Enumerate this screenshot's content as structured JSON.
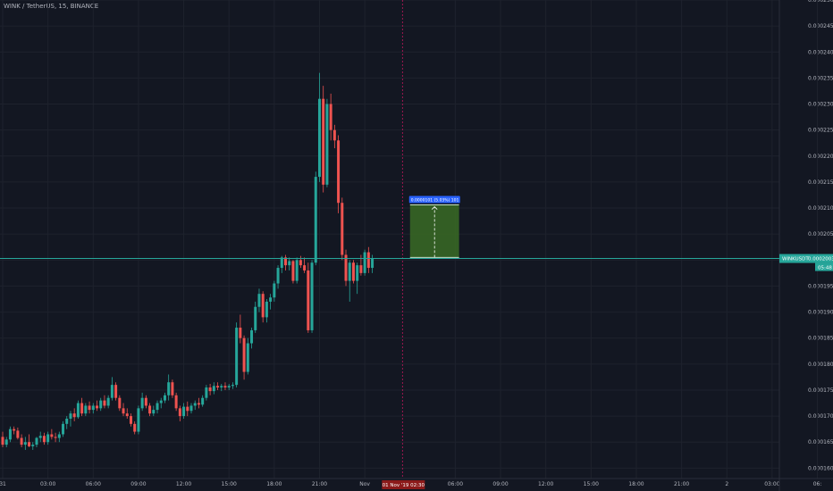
{
  "header": {
    "symbol_title": "WINK / TetherUS, 15, BINANCE"
  },
  "colors": {
    "background": "#131722",
    "grid": "#1e222d",
    "up": "#26a69a",
    "down": "#ef5350",
    "crosshair": "#c2185b",
    "measure_fill": "#3a6b25",
    "measure_label_bg": "#2962ff"
  },
  "chart_data": {
    "type": "candlestick",
    "ylim": [
      0.000158,
      0.00025
    ],
    "y_ticks": [
      "0.0002500",
      "0.0002450",
      "0.0002400",
      "0.0002350",
      "0.0002300",
      "0.0002250",
      "0.0002200",
      "0.0002150",
      "0.0002100",
      "0.0002050",
      "0.0002000",
      "0.0001950",
      "0.0001900",
      "0.0001850",
      "0.0001800",
      "0.0001750",
      "0.0001700",
      "0.0001650",
      "0.0001600"
    ],
    "x_ticks": [
      {
        "label": "31",
        "i": 0
      },
      {
        "label": "03:00",
        "i": 12
      },
      {
        "label": "06:00",
        "i": 24
      },
      {
        "label": "09:00",
        "i": 36
      },
      {
        "label": "12:00",
        "i": 48
      },
      {
        "label": "15:00",
        "i": 60
      },
      {
        "label": "18:00",
        "i": 72
      },
      {
        "label": "21:00",
        "i": 84
      },
      {
        "label": "Nov",
        "i": 96
      },
      {
        "label": "06:00",
        "i": 120
      },
      {
        "label": "09:00",
        "i": 132
      },
      {
        "label": "12:00",
        "i": 144
      },
      {
        "label": "15:00",
        "i": 156
      },
      {
        "label": "18:00",
        "i": 168
      },
      {
        "label": "21:00",
        "i": 180
      },
      {
        "label": "2",
        "i": 192
      },
      {
        "label": "03:00",
        "i": 204
      },
      {
        "label": "06:",
        "i": 216
      }
    ],
    "crosshair_label": "01 Nov '19   02:30",
    "crosshair_index": 106,
    "last_price": {
      "symbol": "WINKUSDT",
      "value": "0.0002003",
      "countdown": "05:48",
      "price": 0.0002003
    },
    "measure": {
      "label": "0.0000101 (5.03%) 101",
      "from_price": 0.0002005,
      "to_price": 0.0002106,
      "from_index": 108,
      "to_index": 121
    },
    "candles": [
      [
        0.000166,
        0.000167,
        0.000164,
        0.0001645
      ],
      [
        0.0001645,
        0.000166,
        0.000164,
        0.0001655
      ],
      [
        0.0001655,
        0.000168,
        0.000165,
        0.0001675
      ],
      [
        0.0001675,
        0.000168,
        0.0001665,
        0.0001672
      ],
      [
        0.0001672,
        0.0001678,
        0.0001655,
        0.0001658
      ],
      [
        0.0001658,
        0.0001665,
        0.000164,
        0.0001645
      ],
      [
        0.0001645,
        0.000166,
        0.0001635,
        0.000165
      ],
      [
        0.000165,
        0.0001665,
        0.000164,
        0.0001642
      ],
      [
        0.0001642,
        0.000165,
        0.0001635,
        0.0001645
      ],
      [
        0.0001645,
        0.000166,
        0.000164,
        0.0001658
      ],
      [
        0.0001658,
        0.000167,
        0.000165,
        0.0001662
      ],
      [
        0.0001662,
        0.0001668,
        0.0001645,
        0.000165
      ],
      [
        0.000165,
        0.000167,
        0.0001645,
        0.0001665
      ],
      [
        0.0001665,
        0.0001675,
        0.0001655,
        0.000166
      ],
      [
        0.000166,
        0.0001668,
        0.000165,
        0.0001658
      ],
      [
        0.0001658,
        0.000167,
        0.000165,
        0.0001665
      ],
      [
        0.0001665,
        0.000169,
        0.000166,
        0.0001685
      ],
      [
        0.0001685,
        0.00017,
        0.0001675,
        0.0001695
      ],
      [
        0.0001695,
        0.000171,
        0.000168,
        0.0001705
      ],
      [
        0.0001705,
        0.0001715,
        0.000169,
        0.0001698
      ],
      [
        0.0001698,
        0.000173,
        0.0001695,
        0.0001725
      ],
      [
        0.0001725,
        0.0001735,
        0.00017,
        0.0001705
      ],
      [
        0.0001705,
        0.0001725,
        0.00017,
        0.000172
      ],
      [
        0.000172,
        0.0001728,
        0.0001705,
        0.0001712
      ],
      [
        0.0001712,
        0.0001725,
        0.0001705,
        0.000172
      ],
      [
        0.000172,
        0.000173,
        0.000171,
        0.0001715
      ],
      [
        0.0001715,
        0.0001735,
        0.000171,
        0.000173
      ],
      [
        0.000173,
        0.000174,
        0.0001715,
        0.000172
      ],
      [
        0.000172,
        0.000174,
        0.0001715,
        0.0001735
      ],
      [
        0.0001735,
        0.0001775,
        0.000173,
        0.000176
      ],
      [
        0.000176,
        0.0001765,
        0.000173,
        0.0001735
      ],
      [
        0.0001735,
        0.000174,
        0.000171,
        0.0001715
      ],
      [
        0.0001715,
        0.0001725,
        0.00017,
        0.0001705
      ],
      [
        0.0001705,
        0.0001715,
        0.0001695,
        0.00017
      ],
      [
        0.00017,
        0.0001705,
        0.000168,
        0.0001685
      ],
      [
        0.0001685,
        0.000169,
        0.0001665,
        0.000167
      ],
      [
        0.000167,
        0.000172,
        0.0001665,
        0.0001715
      ],
      [
        0.0001715,
        0.0001745,
        0.000171,
        0.0001735
      ],
      [
        0.0001735,
        0.000174,
        0.0001715,
        0.000172
      ],
      [
        0.000172,
        0.0001725,
        0.00017,
        0.0001705
      ],
      [
        0.0001705,
        0.000172,
        0.00017,
        0.0001712
      ],
      [
        0.0001712,
        0.000173,
        0.0001705,
        0.0001725
      ],
      [
        0.0001725,
        0.0001735,
        0.0001715,
        0.000173
      ],
      [
        0.000173,
        0.0001745,
        0.0001725,
        0.000174
      ],
      [
        0.000174,
        0.000178,
        0.000173,
        0.0001765
      ],
      [
        0.0001765,
        0.000177,
        0.0001735,
        0.000174
      ],
      [
        0.000174,
        0.0001745,
        0.000171,
        0.0001715
      ],
      [
        0.0001715,
        0.000172,
        0.000169,
        0.00017
      ],
      [
        0.00017,
        0.0001725,
        0.0001695,
        0.0001718
      ],
      [
        0.0001718,
        0.0001728,
        0.00017,
        0.000171
      ],
      [
        0.000171,
        0.0001725,
        0.0001705,
        0.000172
      ],
      [
        0.000172,
        0.000173,
        0.0001712,
        0.0001725
      ],
      [
        0.0001725,
        0.0001735,
        0.0001715,
        0.0001722
      ],
      [
        0.0001722,
        0.000174,
        0.0001718,
        0.0001735
      ],
      [
        0.0001735,
        0.000176,
        0.000173,
        0.0001755
      ],
      [
        0.0001755,
        0.0001762,
        0.000174,
        0.0001748
      ],
      [
        0.0001748,
        0.0001765,
        0.0001742,
        0.0001758
      ],
      [
        0.0001758,
        0.0001765,
        0.000175,
        0.0001755
      ],
      [
        0.0001755,
        0.0001762,
        0.0001748,
        0.0001758
      ],
      [
        0.0001758,
        0.0001765,
        0.000175,
        0.0001755
      ],
      [
        0.0001755,
        0.0001762,
        0.000175,
        0.0001758
      ],
      [
        0.0001758,
        0.0001765,
        0.0001752,
        0.000176
      ],
      [
        0.000176,
        0.000188,
        0.0001755,
        0.000187
      ],
      [
        0.000187,
        0.0001895,
        0.000184,
        0.000185
      ],
      [
        0.000185,
        0.0001855,
        0.000177,
        0.0001785
      ],
      [
        0.0001785,
        0.000185,
        0.000178,
        0.000184
      ],
      [
        0.000184,
        0.000187,
        0.000183,
        0.0001865
      ],
      [
        0.0001865,
        0.000192,
        0.000186,
        0.000191
      ],
      [
        0.000191,
        0.0001945,
        0.00019,
        0.0001935
      ],
      [
        0.0001935,
        0.000194,
        0.000188,
        0.000189
      ],
      [
        0.000189,
        0.0001925,
        0.000188,
        0.000192
      ],
      [
        0.000192,
        0.0001935,
        0.0001905,
        0.0001928
      ],
      [
        0.0001928,
        0.000196,
        0.000192,
        0.0001955
      ],
      [
        0.0001955,
        0.000199,
        0.0001945,
        0.0001985
      ],
      [
        0.0001985,
        0.0002008,
        0.0001975,
        0.0002005
      ],
      [
        0.0002005,
        0.000201,
        0.000198,
        0.000199
      ],
      [
        0.000199,
        0.0002005,
        0.000198,
        0.0001998
      ],
      [
        0.0001998,
        0.0002,
        0.0001955,
        0.000196
      ],
      [
        0.000196,
        0.0002005,
        0.0001955,
        0.0002
      ],
      [
        0.0002,
        0.0002008,
        0.0001985,
        0.000199
      ],
      [
        0.000199,
        0.0002005,
        0.0001975,
        0.000198
      ],
      [
        0.000198,
        0.0001995,
        0.000186,
        0.0001865
      ],
      [
        0.0001865,
        0.0002,
        0.000186,
        0.0001995
      ],
      [
        0.0001995,
        0.000217,
        0.000199,
        0.000216
      ],
      [
        0.000216,
        0.000236,
        0.000215,
        0.000231
      ],
      [
        0.000231,
        0.0002335,
        0.000213,
        0.0002145
      ],
      [
        0.0002145,
        0.000231,
        0.000214,
        0.00023
      ],
      [
        0.00023,
        0.000232,
        0.000223,
        0.000225
      ],
      [
        0.000225,
        0.000226,
        0.0002215,
        0.000223
      ],
      [
        0.000223,
        0.000224,
        0.000209,
        0.000211
      ],
      [
        0.000211,
        0.000212,
        0.0002,
        0.000201
      ],
      [
        0.000201,
        0.000202,
        0.000195,
        0.000196
      ],
      [
        0.000196,
        0.0002,
        0.000192,
        0.0001995
      ],
      [
        0.0001995,
        0.0002,
        0.0001955,
        0.000196
      ],
      [
        0.000196,
        0.0001995,
        0.0001935,
        0.000199
      ],
      [
        0.000199,
        0.000201,
        0.000197,
        0.0001975
      ],
      [
        0.0001975,
        0.000202,
        0.000197,
        0.0002015
      ],
      [
        0.0002015,
        0.0002025,
        0.0001975,
        0.0001985
      ],
      [
        0.0001985,
        0.000201,
        0.0001975,
        0.0002003
      ]
    ]
  }
}
